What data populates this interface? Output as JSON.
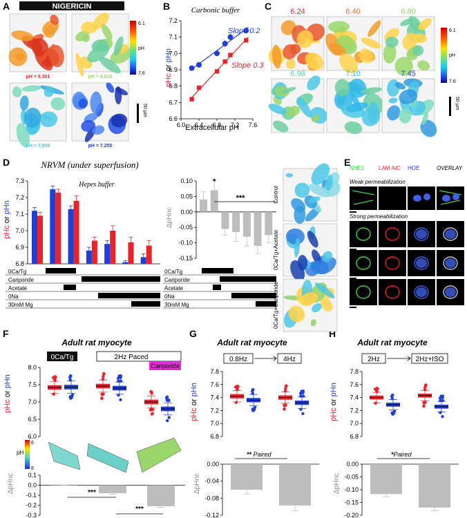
{
  "panel_letters": [
    "A",
    "B",
    "C",
    "D",
    "E",
    "F",
    "G",
    "H"
  ],
  "colors": {
    "red": "#e8232a",
    "blue": "#1f3fd6",
    "gray": "#bdbdbd",
    "magenta": "#e82ad6",
    "cyan": "#4bc8e6",
    "green": "#8fd06a",
    "orange": "#ef6a28"
  },
  "panel_a": {
    "title": "NIGERICIN",
    "tiles": [
      {
        "label": "pH = 6.301",
        "color": "#e8232a"
      },
      {
        "label": "pH = 6.814",
        "color": "#9bd66a"
      },
      {
        "label": "pH = 7.008",
        "color": "#4bc8e6"
      },
      {
        "label": "pH = 7.255",
        "color": "#1f3fd6"
      }
    ],
    "colorbar": {
      "top": "6.1",
      "mid": "pH",
      "bottom": "7.6"
    },
    "scalebar": "50 µm"
  },
  "panel_b": {
    "title": "Carbonic buffer",
    "ylabel_red": "pHc",
    "ylabel_or": " or ",
    "ylabel_blue": "pHn",
    "xlabel": "Extracellular pH",
    "slope_blue": "Slope 0.2",
    "slope_red": "Slope 0.3",
    "xticks": [
      "6.0",
      "6.4",
      "6.8",
      "7.2",
      "7.6"
    ],
    "yticks": [
      "6.6",
      "6.7",
      "6.8",
      "6.9",
      "7.0",
      "7.1",
      "7.2"
    ]
  },
  "panel_c": {
    "tiles": [
      {
        "label": "6.24",
        "color": "#e8232a"
      },
      {
        "label": "6.40",
        "color": "#ef6a28"
      },
      {
        "label": "6.80",
        "color": "#8fd06a"
      },
      {
        "label": "6.98",
        "color": "#5ecfa8"
      },
      {
        "label": "7.10",
        "color": "#32b8e6"
      },
      {
        "label": "7.45",
        "color": "#1f3fd6"
      }
    ],
    "colorbar": {
      "top": "6.1",
      "mid": "pH",
      "bottom": "7.6"
    },
    "scalebar": "50 µm"
  },
  "panel_d": {
    "title": "NRVM (under superfusion)",
    "subtitle": "Hepes buffer",
    "ylabel_red": "pHc",
    "ylabel_or": " or ",
    "ylabel_blue": "pHn",
    "left_yticks": [
      "6.8",
      "6.9",
      "7.0",
      "7.1",
      "7.2",
      "7.3"
    ],
    "right_ylabel": "ΔpHnc",
    "right_yticks": [
      "0.10",
      "0.05",
      "0.00",
      "-0.05",
      "-0.10",
      "-0.15"
    ],
    "star_single": "*",
    "star_triple": "***",
    "conditions": [
      "0Ca/Tg",
      "Cariporide",
      "Acetate",
      "0Na",
      "30mM Mg"
    ],
    "image_labels": [
      "Control",
      "0Ca/Tg+Acetate",
      "0Ca/Tg+Cariporide"
    ]
  },
  "panel_e": {
    "headers": [
      {
        "t": "NHE1",
        "c": "#3fd63f"
      },
      {
        "t": "LAM A/C",
        "c": "#e8232a"
      },
      {
        "t": "HOE",
        "c": "#1f3fd6"
      },
      {
        "t": "OVERLAY",
        "c": "#000"
      }
    ],
    "weak": "Weak permeabilization",
    "strong": "Strong permeabilization"
  },
  "panel_f": {
    "title": "Adult rat myocyte",
    "tag_1": "0Ca/Tg",
    "tag_2": "2Hz Paced",
    "tag_3": "Cariporide",
    "ylabel_red": "pHc",
    "ylabel_or": " or ",
    "ylabel_blue": "pHn",
    "yticks": [
      "6.0",
      "6.5",
      "7.0",
      "7.5",
      "8.0"
    ],
    "ph_label": "pH",
    "bar_top": "6",
    "bar_bottom": "8",
    "dlabel": "ΔpHnc",
    "dyticks": [
      "0.1",
      "0.0",
      "-0.1",
      "-0.2",
      "-0.3"
    ],
    "stars": "***"
  },
  "panel_g": {
    "title": "Adult rat myocyte",
    "tag_1": "0.8Hz",
    "tag_2": "4Hz",
    "ylabel_red": "pHc",
    "ylabel_or": " or ",
    "ylabel_blue": "pHn",
    "yticks": [
      "6.8",
      "7.0",
      "7.2",
      "7.4",
      "7.6",
      "7.8"
    ],
    "stars": "**",
    "paired": " Paired",
    "dlabel": "ΔpHnc",
    "dyticks": [
      "0.00",
      "-0.04",
      "-0.08",
      "-0.12"
    ]
  },
  "panel_h": {
    "title": "Adult rat myocyte",
    "tag_1": "2Hz",
    "tag_2": "2Hz+ISO",
    "ylabel_red": "pHc",
    "ylabel_or": " or ",
    "ylabel_blue": "pHn",
    "yticks": [
      "6.8",
      "7.0",
      "7.2",
      "7.4",
      "7.6",
      "7.8"
    ],
    "stars": "*",
    "paired": "Paired",
    "dlabel": "ΔpHnc",
    "dyticks": [
      "0.00",
      "-0.05",
      "-0.10",
      "-0.15",
      "-0.20"
    ]
  },
  "chart_data": [
    {
      "id": "B",
      "type": "scatter",
      "title": "Carbonic buffer",
      "xlabel": "Extracellular pH",
      "xlim": [
        6.0,
        7.6
      ],
      "ylim": [
        6.6,
        7.2
      ],
      "series": [
        {
          "name": "pHn",
          "x": [
            6.24,
            6.4,
            6.8,
            6.98,
            7.1,
            7.45
          ],
          "y": [
            6.91,
            6.93,
            7.0,
            7.06,
            7.1,
            7.14
          ],
          "err": [
            0.015,
            0.015,
            0.015,
            0.02,
            0.02,
            0.02
          ]
        },
        {
          "name": "pHc",
          "x": [
            6.24,
            6.4,
            6.8,
            6.98,
            7.1,
            7.45
          ],
          "y": [
            6.72,
            6.79,
            6.89,
            6.95,
            6.99,
            7.08
          ],
          "err": [
            0.01,
            0.01,
            0.01,
            0.01,
            0.01,
            0.01
          ]
        }
      ]
    },
    {
      "id": "D-left",
      "type": "bar",
      "ylim": [
        6.8,
        7.3
      ],
      "series": [
        {
          "name": "pHc",
          "values": [
            7.09,
            7.23,
            7.18,
            6.94,
            7.0,
            6.93,
            6.91
          ],
          "err": [
            0.02,
            0.02,
            0.03,
            0.02,
            0.03,
            0.03,
            0.03
          ]
        },
        {
          "name": "pHn",
          "values": [
            7.12,
            7.25,
            7.13,
            6.88,
            6.92,
            6.81,
            6.84
          ],
          "err": [
            0.02,
            0.02,
            0.02,
            0.02,
            0.02,
            0.01,
            0.02
          ]
        }
      ]
    },
    {
      "id": "D-right",
      "type": "bar",
      "ylim": [
        -0.15,
        0.1
      ],
      "values": [
        0.04,
        0.07,
        -0.055,
        -0.065,
        -0.08,
        -0.11,
        -0.075
      ],
      "err": [
        0.025,
        0.03,
        0.02,
        0.03,
        0.03,
        0.025,
        0.025
      ]
    },
    {
      "id": "F-top",
      "type": "box",
      "ylim": [
        6.0,
        8.0
      ],
      "groups": 3,
      "series": [
        {
          "name": "pHc",
          "medians": [
            7.42,
            7.46,
            7.0
          ]
        },
        {
          "name": "pHn",
          "medians": [
            7.43,
            7.4,
            6.8
          ]
        }
      ]
    },
    {
      "id": "F-bottom",
      "type": "bar",
      "ylim": [
        -0.3,
        0.1
      ],
      "values": [
        0.005,
        -0.08,
        -0.21
      ],
      "err": [
        0.005,
        0.01,
        0.01
      ]
    },
    {
      "id": "G-top",
      "type": "box",
      "ylim": [
        6.8,
        7.8
      ],
      "groups": 2,
      "series": [
        {
          "name": "pHc",
          "medians": [
            7.42,
            7.4
          ]
        },
        {
          "name": "pHn",
          "medians": [
            7.36,
            7.32
          ]
        }
      ]
    },
    {
      "id": "G-bottom",
      "type": "bar",
      "ylim": [
        -0.12,
        0.0
      ],
      "values": [
        -0.06,
        -0.097
      ],
      "err": [
        0.01,
        0.012
      ]
    },
    {
      "id": "H-top",
      "type": "box",
      "ylim": [
        6.8,
        7.8
      ],
      "groups": 2,
      "series": [
        {
          "name": "pHc",
          "medians": [
            7.4,
            7.43
          ]
        },
        {
          "name": "pHn",
          "medians": [
            7.29,
            7.26
          ]
        }
      ]
    },
    {
      "id": "H-bottom",
      "type": "bar",
      "ylim": [
        -0.2,
        0.0
      ],
      "values": [
        -0.117,
        -0.17
      ],
      "err": [
        0.01,
        0.012
      ]
    }
  ]
}
